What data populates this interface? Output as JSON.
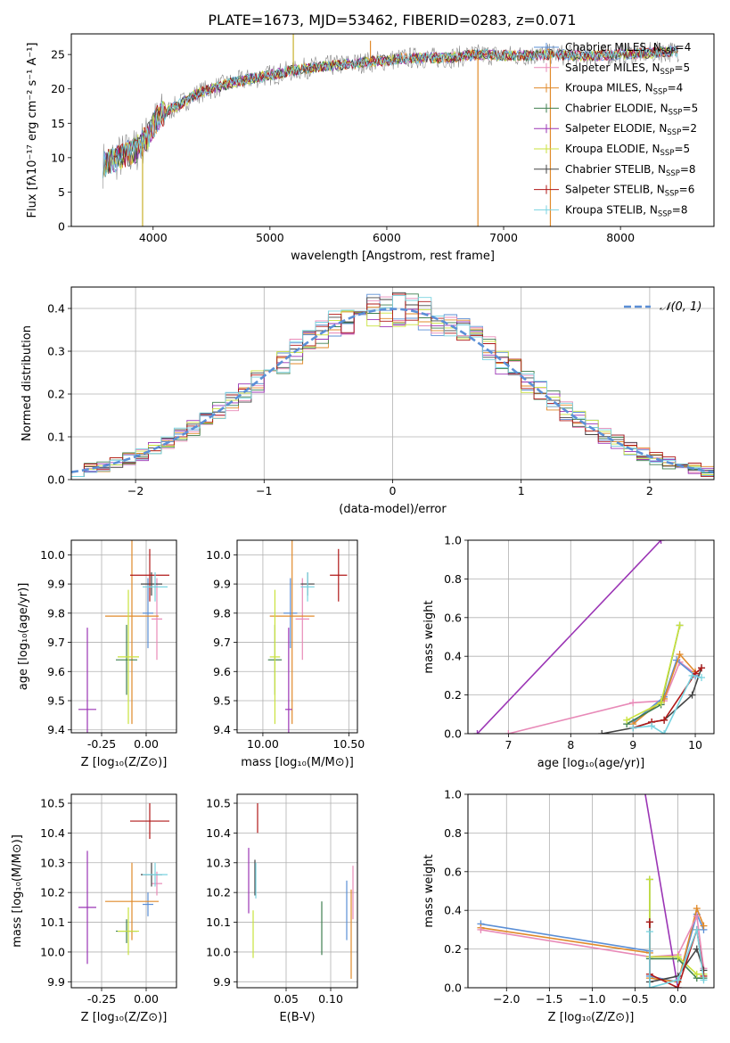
{
  "figure": {
    "title": "PLATE=1673, MJD=53462, FIBERID=0283, z=0.071"
  },
  "colors": {
    "Chabrier MILES": "#5b8fd6",
    "Salpeter MILES": "#e88ab8",
    "Kroupa MILES": "#e08a2a",
    "Chabrier ELODIE": "#3f7f4f",
    "Salpeter ELODIE": "#9b35b5",
    "Kroupa ELODIE": "#c9e23c",
    "Chabrier STELIB": "#444444",
    "Salpeter STELIB": "#b01818",
    "Kroupa STELIB": "#78d3e0"
  },
  "chart_data": [
    {
      "id": "spectrum",
      "type": "line",
      "xlabel": "wavelength [Angstrom, rest frame]",
      "ylabel": "Flux [fλ10⁻¹⁷ erg cm⁻² s⁻¹ A⁻¹]",
      "xlim": [
        3300,
        8800
      ],
      "ylim": [
        0,
        28
      ],
      "xticks": [
        4000,
        5000,
        6000,
        7000,
        8000
      ],
      "yticks": [
        0,
        5,
        10,
        15,
        20,
        25
      ],
      "legend_position": "right",
      "legend": [
        {
          "model": "Chabrier MILES",
          "label": "Chabrier MILES, N",
          "sub": "SSP",
          "value": "=4"
        },
        {
          "model": "Salpeter MILES",
          "label": "Salpeter MILES, N",
          "sub": "SSP",
          "value": "=5"
        },
        {
          "model": "Kroupa MILES",
          "label": "Kroupa MILES, N",
          "sub": "SSP",
          "value": "=4"
        },
        {
          "model": "Chabrier ELODIE",
          "label": "Chabrier ELODIE, N",
          "sub": "SSP",
          "value": "=5"
        },
        {
          "model": "Salpeter ELODIE",
          "label": "Salpeter ELODIE, N",
          "sub": "SSP",
          "value": "=2"
        },
        {
          "model": "Kroupa ELODIE",
          "label": "Kroupa ELODIE, N",
          "sub": "SSP",
          "value": "=5"
        },
        {
          "model": "Chabrier STELIB",
          "label": "Chabrier STELIB, N",
          "sub": "SSP",
          "value": "=8"
        },
        {
          "model": "Salpeter STELIB",
          "label": "Salpeter STELIB, N",
          "sub": "SSP",
          "value": "=6"
        },
        {
          "model": "Kroupa STELIB",
          "label": "Kroupa STELIB, N",
          "sub": "SSP",
          "value": "=8"
        }
      ],
      "continuum": {
        "x": [
          3570,
          3700,
          3850,
          3950,
          4050,
          4200,
          4400,
          4700,
          5000,
          5300,
          5600,
          5900,
          6200,
          6500,
          6800,
          7100,
          7400,
          7700,
          8000,
          8300,
          8500
        ],
        "y": [
          9,
          10,
          11,
          13,
          16,
          17.5,
          19.5,
          21,
          22,
          23,
          23.5,
          24,
          24.5,
          24.5,
          25,
          24.8,
          25,
          24.8,
          25,
          25.3,
          25.5
        ]
      },
      "spikes": [
        {
          "x": 3910,
          "y": 0
        },
        {
          "x": 5200,
          "y": 28
        },
        {
          "x": 6780,
          "y": 0
        },
        {
          "x": 7400,
          "y": 0
        },
        {
          "x": 5860,
          "y": 27
        }
      ]
    },
    {
      "id": "residuals",
      "type": "histogram",
      "xlabel": "(data-model)/error",
      "ylabel": "Normed distribution",
      "xlim": [
        -2.5,
        2.5
      ],
      "ylim": [
        0,
        0.45
      ],
      "xticks": [
        -2,
        -1,
        0,
        1,
        2
      ],
      "yticks": [
        0,
        0.1,
        0.2,
        0.3,
        0.4
      ],
      "bin_width": 0.1,
      "legend_label": "𝒩(0, 1)",
      "legend_position": "top-right",
      "reference": {
        "name": "𝒩(0, 1)",
        "mean": 0,
        "sigma": 1
      }
    },
    {
      "id": "age-vs-Z",
      "type": "errorbar",
      "xlabel": "Z [log₁₀(Z/Z⊙)]",
      "ylabel": "age  [log₁₀(age/yr)]",
      "xlim": [
        -0.42,
        0.17
      ],
      "ylim": [
        9.39,
        10.05
      ],
      "xticks": [
        -0.25,
        0.0
      ],
      "yticks": [
        9.4,
        9.5,
        9.6,
        9.7,
        9.8,
        9.9,
        10.0
      ],
      "points": [
        {
          "model": "Chabrier MILES",
          "x": 0.01,
          "xerr": 0.03,
          "y": 9.8,
          "yerr": 0.12
        },
        {
          "model": "Salpeter MILES",
          "x": 0.06,
          "xerr": 0.03,
          "y": 9.78,
          "yerr": 0.14
        },
        {
          "model": "Kroupa MILES",
          "x": -0.08,
          "xerr": 0.15,
          "y": 9.79,
          "yerr": 0.37
        },
        {
          "model": "Chabrier ELODIE",
          "x": -0.11,
          "xerr": 0.06,
          "y": 9.64,
          "yerr": 0.12
        },
        {
          "model": "Salpeter ELODIE",
          "x": -0.33,
          "xerr": 0.05,
          "y": 9.47,
          "yerr": 0.28
        },
        {
          "model": "Kroupa ELODIE",
          "x": -0.1,
          "xerr": 0.06,
          "y": 9.65,
          "yerr": 0.23
        },
        {
          "model": "Chabrier STELIB",
          "x": 0.03,
          "xerr": 0.06,
          "y": 9.9,
          "yerr": 0.04
        },
        {
          "model": "Salpeter STELIB",
          "x": 0.02,
          "xerr": 0.11,
          "y": 9.93,
          "yerr": 0.09
        },
        {
          "model": "Kroupa STELIB",
          "x": 0.05,
          "xerr": 0.07,
          "y": 9.89,
          "yerr": 0.05
        }
      ]
    },
    {
      "id": "age-vs-mass",
      "type": "errorbar",
      "xlabel": "mass [log₁₀(M/M⊙)]",
      "ylabel": "",
      "xlim": [
        9.85,
        10.55
      ],
      "ylim": [
        9.39,
        10.05
      ],
      "xticks": [
        10.0,
        10.5
      ],
      "yticks": [
        9.4,
        9.5,
        9.6,
        9.7,
        9.8,
        9.9,
        10.0
      ],
      "points": [
        {
          "model": "Chabrier MILES",
          "x": 10.16,
          "xerr": 0.04,
          "y": 9.8,
          "yerr": 0.12
        },
        {
          "model": "Salpeter MILES",
          "x": 10.23,
          "xerr": 0.04,
          "y": 9.78,
          "yerr": 0.14
        },
        {
          "model": "Kroupa MILES",
          "x": 10.17,
          "xerr": 0.13,
          "y": 9.79,
          "yerr": 0.37
        },
        {
          "model": "Chabrier ELODIE",
          "x": 10.07,
          "xerr": 0.04,
          "y": 9.64,
          "yerr": 0.12
        },
        {
          "model": "Salpeter ELODIE",
          "x": 10.15,
          "xerr": 0.02,
          "y": 9.47,
          "yerr": 0.28
        },
        {
          "model": "Kroupa ELODIE",
          "x": 10.07,
          "xerr": 0.03,
          "y": 9.65,
          "yerr": 0.23
        },
        {
          "model": "Chabrier STELIB",
          "x": 10.26,
          "xerr": 0.04,
          "y": 9.9,
          "yerr": 0.04
        },
        {
          "model": "Salpeter STELIB",
          "x": 10.44,
          "xerr": 0.05,
          "y": 9.93,
          "yerr": 0.09
        },
        {
          "model": "Kroupa STELIB",
          "x": 10.26,
          "xerr": 0.04,
          "y": 9.89,
          "yerr": 0.05
        }
      ]
    },
    {
      "id": "weight-vs-age",
      "type": "line",
      "xlabel": "age  [log₁₀(age/yr)]",
      "ylabel": "mass weight",
      "xlim": [
        6.35,
        10.3
      ],
      "ylim": [
        0,
        1
      ],
      "xticks": [
        7,
        8,
        9,
        10
      ],
      "yticks": [
        0,
        0.2,
        0.4,
        0.6,
        0.8,
        1.0
      ],
      "series": [
        {
          "model": "Salpeter ELODIE",
          "x": [
            6.5,
            9.45
          ],
          "y": [
            0,
            1
          ]
        },
        {
          "model": "Salpeter MILES",
          "x": [
            7.0,
            9.0,
            9.5,
            9.75,
            10.0
          ],
          "y": [
            0,
            0.16,
            0.17,
            0.37,
            0.31
          ]
        },
        {
          "model": "Chabrier MILES",
          "x": [
            9.0,
            9.5,
            9.7,
            10.0
          ],
          "y": [
            0.06,
            0.19,
            0.38,
            0.3
          ]
        },
        {
          "model": "Kroupa MILES",
          "x": [
            9.0,
            9.5,
            9.75,
            10.0
          ],
          "y": [
            0.05,
            0.18,
            0.41,
            0.32
          ]
        },
        {
          "model": "Chabrier ELODIE",
          "x": [
            8.9,
            9.45,
            9.75
          ],
          "y": [
            0.05,
            0.15,
            0.56
          ]
        },
        {
          "model": "Kroupa ELODIE",
          "x": [
            8.9,
            9.45,
            9.75
          ],
          "y": [
            0.07,
            0.16,
            0.56
          ]
        },
        {
          "model": "Chabrier STELIB",
          "x": [
            8.5,
            9.0,
            9.3,
            9.5,
            9.95,
            10.1
          ],
          "y": [
            0,
            0.03,
            0.06,
            0.07,
            0.2,
            0.34
          ]
        },
        {
          "model": "Salpeter STELIB",
          "x": [
            9.0,
            9.3,
            9.5,
            10.0,
            10.1
          ],
          "y": [
            0.03,
            0.06,
            0.07,
            0.31,
            0.34
          ]
        },
        {
          "model": "Kroupa STELIB",
          "x": [
            9.0,
            9.3,
            9.5,
            9.95,
            10.1
          ],
          "y": [
            0.03,
            0.04,
            0.0,
            0.3,
            0.29
          ]
        }
      ]
    },
    {
      "id": "mass-vs-Z",
      "type": "errorbar",
      "xlabel": "Z [log₁₀(Z/Z⊙)]",
      "ylabel": "mass [log₁₀(M/M⊙)]",
      "xlim": [
        -0.42,
        0.17
      ],
      "ylim": [
        9.88,
        10.53
      ],
      "xticks": [
        -0.25,
        0.0
      ],
      "yticks": [
        9.9,
        10.0,
        10.1,
        10.2,
        10.3,
        10.4,
        10.5
      ],
      "points": [
        {
          "model": "Chabrier MILES",
          "x": 0.01,
          "xerr": 0.03,
          "y": 10.16,
          "yerr": 0.04
        },
        {
          "model": "Salpeter MILES",
          "x": 0.06,
          "xerr": 0.03,
          "y": 10.23,
          "yerr": 0.04
        },
        {
          "model": "Kroupa MILES",
          "x": -0.08,
          "xerr": 0.15,
          "y": 10.17,
          "yerr": 0.13
        },
        {
          "model": "Chabrier ELODIE",
          "x": -0.11,
          "xerr": 0.06,
          "y": 10.07,
          "yerr": 0.04
        },
        {
          "model": "Salpeter ELODIE",
          "x": -0.33,
          "xerr": 0.05,
          "y": 10.15,
          "yerr": 0.19
        },
        {
          "model": "Kroupa ELODIE",
          "x": -0.1,
          "xerr": 0.06,
          "y": 10.07,
          "yerr": 0.08
        },
        {
          "model": "Chabrier STELIB",
          "x": 0.03,
          "xerr": 0.06,
          "y": 10.26,
          "yerr": 0.04
        },
        {
          "model": "Salpeter STELIB",
          "x": 0.02,
          "xerr": 0.11,
          "y": 10.44,
          "yerr": 0.06
        },
        {
          "model": "Kroupa STELIB",
          "x": 0.05,
          "xerr": 0.07,
          "y": 10.26,
          "yerr": 0.04
        }
      ]
    },
    {
      "id": "mass-vs-ebv",
      "type": "errorbar",
      "xlabel": "E(B-V)",
      "ylabel": "",
      "xlim": [
        -0.005,
        0.13
      ],
      "ylim": [
        9.88,
        10.53
      ],
      "xticks": [
        0.05,
        0.1
      ],
      "xtick_labels": [
        "0.05",
        "0.10"
      ],
      "yticks": [
        9.9,
        10.0,
        10.1,
        10.2,
        10.3,
        10.4,
        10.5
      ],
      "points": [
        {
          "model": "Chabrier MILES",
          "x": 0.118,
          "xerr": 0,
          "y": 10.14,
          "yerr": 0.1
        },
        {
          "model": "Salpeter MILES",
          "x": 0.125,
          "xerr": 0,
          "y": 10.2,
          "yerr": 0.09
        },
        {
          "model": "Kroupa MILES",
          "x": 0.123,
          "xerr": 0,
          "y": 10.06,
          "yerr": 0.15
        },
        {
          "model": "Chabrier ELODIE",
          "x": 0.09,
          "xerr": 0,
          "y": 10.08,
          "yerr": 0.09
        },
        {
          "model": "Salpeter ELODIE",
          "x": 0.008,
          "xerr": 0,
          "y": 10.24,
          "yerr": 0.11
        },
        {
          "model": "Kroupa ELODIE",
          "x": 0.013,
          "xerr": 0,
          "y": 10.06,
          "yerr": 0.08
        },
        {
          "model": "Chabrier STELIB",
          "x": 0.015,
          "xerr": 0,
          "y": 10.25,
          "yerr": 0.06
        },
        {
          "model": "Salpeter STELIB",
          "x": 0.018,
          "xerr": 0,
          "y": 10.45,
          "yerr": 0.05
        },
        {
          "model": "Kroupa STELIB",
          "x": 0.016,
          "xerr": 0,
          "y": 10.24,
          "yerr": 0.06
        }
      ]
    },
    {
      "id": "weight-vs-Z",
      "type": "line",
      "xlabel": "Z [log₁₀(Z/Z⊙)]",
      "ylabel": "mass weight",
      "xlim": [
        -2.45,
        0.42
      ],
      "ylim": [
        0,
        1
      ],
      "xticks": [
        -2.0,
        -1.5,
        -1.0,
        -0.5,
        0.0
      ],
      "xtick_labels": [
        "−2.0",
        "−1.5",
        "−1.0",
        "−0.5",
        "0.0"
      ],
      "yticks": [
        0,
        0.2,
        0.4,
        0.6,
        0.8,
        1.0
      ],
      "series": [
        {
          "model": "Chabrier MILES",
          "x": [
            -2.3,
            -0.33,
            -0.33,
            0.0,
            0.22,
            0.3
          ],
          "y": [
            0.33,
            0.19,
            0.06,
            0.03,
            0.38,
            0.3
          ]
        },
        {
          "model": "Kroupa MILES",
          "x": [
            -2.3,
            -0.33,
            -0.33,
            0.0,
            0.22,
            0.3
          ],
          "y": [
            0.31,
            0.18,
            0.05,
            0.03,
            0.41,
            0.32
          ]
        },
        {
          "model": "Salpeter MILES",
          "x": [
            -2.3,
            -0.33,
            0.0,
            0.22,
            0.3
          ],
          "y": [
            0.3,
            0.16,
            0.17,
            0.37,
            0.1
          ]
        },
        {
          "model": "Salpeter ELODIE",
          "x": [
            -0.4,
            0.0
          ],
          "y": [
            1.05,
            0.0
          ]
        },
        {
          "model": "Chabrier ELODIE",
          "x": [
            -0.33,
            -0.33,
            0.0,
            0.22,
            0.3
          ],
          "y": [
            0.56,
            0.15,
            0.15,
            0.05,
            0.05
          ]
        },
        {
          "model": "Kroupa ELODIE",
          "x": [
            -0.33,
            -0.33,
            0.0,
            0.22,
            0.3
          ],
          "y": [
            0.56,
            0.16,
            0.16,
            0.07,
            0.07
          ]
        },
        {
          "model": "Chabrier STELIB",
          "x": [
            -0.33,
            -0.33,
            0.0,
            0.22,
            0.3
          ],
          "y": [
            0.34,
            0.03,
            0.06,
            0.2,
            0.09
          ]
        },
        {
          "model": "Salpeter STELIB",
          "x": [
            -0.33,
            -0.33,
            0.0,
            0.22,
            0.3
          ],
          "y": [
            0.34,
            0.07,
            0.0,
            0.3,
            0.06
          ]
        },
        {
          "model": "Kroupa STELIB",
          "x": [
            -0.33,
            -0.33,
            0.0,
            0.22,
            0.3
          ],
          "y": [
            0.29,
            0.0,
            0.04,
            0.3,
            0.04
          ]
        }
      ]
    }
  ]
}
